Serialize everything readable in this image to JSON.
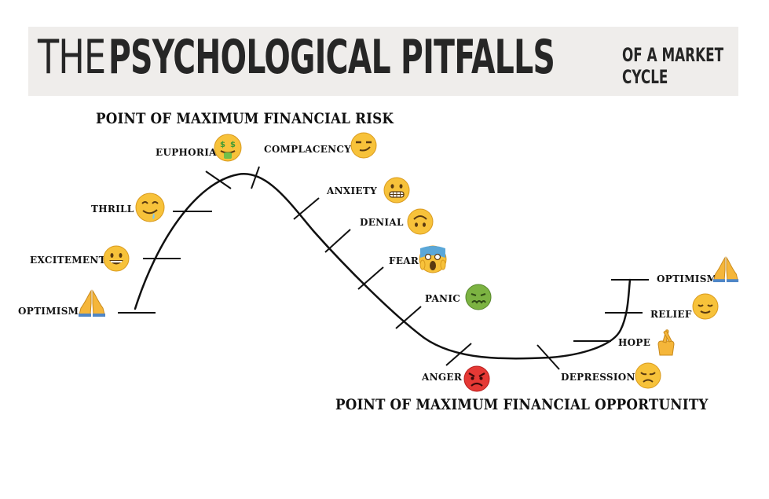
{
  "title": {
    "part1": "THE",
    "part2": "PSYCHOLOGICAL PITFALLS",
    "part3_line1": "OF A MARKET",
    "part3_line2": "CYCLE"
  },
  "top_heading": "POINT OF MAXIMUM  FINANCIAL RISK",
  "bottom_heading": "POINT OF MAXIMUM FINANCIAL OPPORTUNITY",
  "stages": {
    "optimism_start": "OPTIMISM",
    "excitement": "EXCITEMENT",
    "thrill": "THRILL",
    "euphoria": "EUPHORIA",
    "complacency": "COMPLACENCY",
    "anxiety": "ANXIETY",
    "denial": "DENIAL",
    "fear": "FEAR",
    "panic": "PANIC",
    "anger": "ANGER",
    "depression": "DEPRESSION",
    "hope": "HOPE",
    "relief": "RELIEF",
    "optimism_end": "OPTIMISM"
  },
  "icons": {
    "optimism_start": "praying-hands-icon",
    "excitement": "grinning-face-icon",
    "thrill": "drooling-face-icon",
    "euphoria": "money-mouth-face-icon",
    "complacency": "smirking-face-icon",
    "anxiety": "grimacing-face-icon",
    "denial": "upside-down-face-icon",
    "fear": "screaming-face-icon",
    "panic": "nauseated-face-icon",
    "anger": "angry-face-icon",
    "depression": "disappointed-face-icon",
    "hope": "crossed-fingers-icon",
    "relief": "relieved-face-icon",
    "optimism_end": "praying-hands-icon"
  },
  "colors": {
    "banner_bg": "#efedeb",
    "emoji_yellow": "#f7c23a",
    "panic_green": "#7cb342",
    "anger_red": "#e53935",
    "fear_blue": "#5aa7d8"
  }
}
